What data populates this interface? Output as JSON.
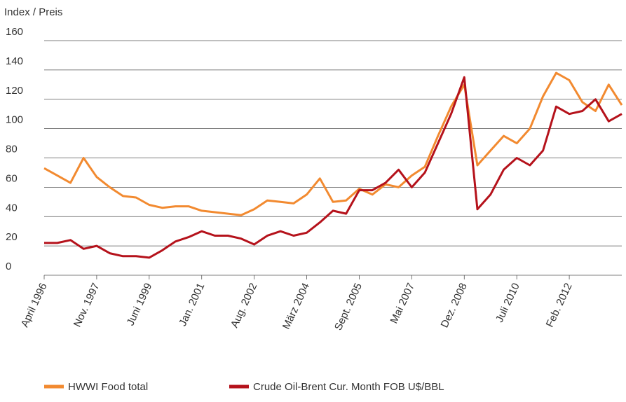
{
  "chart_data": {
    "type": "line",
    "y_axis_label": "Index / Preis",
    "categories": [
      "April 1996",
      null,
      null,
      null,
      "Nov. 1997",
      null,
      null,
      null,
      "Juni 1999",
      null,
      null,
      null,
      "Jan. 2001",
      null,
      null,
      null,
      "Aug. 2002",
      null,
      null,
      null,
      "März 2004",
      null,
      null,
      null,
      "Sept. 2005",
      null,
      null,
      null,
      "Mai 2007",
      null,
      null,
      null,
      "Dez. 2008",
      null,
      null,
      null,
      "Juli 2010",
      null,
      null,
      null,
      "Feb. 2012",
      null,
      null,
      null,
      null
    ],
    "series": [
      {
        "name": "HWWI Food total",
        "color": "#f28a30",
        "values": [
          73,
          68,
          63,
          80,
          67,
          60,
          54,
          53,
          48,
          46,
          47,
          47,
          44,
          43,
          42,
          41,
          45,
          51,
          50,
          49,
          55,
          66,
          50,
          51,
          59,
          55,
          62,
          60,
          68,
          74,
          95,
          115,
          130,
          75,
          85,
          95,
          90,
          100,
          122,
          138,
          133,
          118,
          112,
          130,
          116
        ]
      },
      {
        "name": "Crude Oil-Brent Cur. Month FOB U$/BBL",
        "color": "#b5121b",
        "values": [
          22,
          22,
          24,
          18,
          20,
          15,
          13,
          13,
          12,
          17,
          23,
          26,
          30,
          27,
          27,
          25,
          21,
          27,
          30,
          27,
          29,
          36,
          44,
          42,
          58,
          58,
          63,
          72,
          60,
          70,
          90,
          110,
          135,
          45,
          55,
          72,
          80,
          75,
          85,
          115,
          110,
          112,
          120,
          105,
          110
        ]
      }
    ],
    "ylim": [
      0,
      160
    ],
    "yticks": [
      0,
      20,
      40,
      60,
      80,
      100,
      120,
      140,
      160
    ],
    "grid": true
  }
}
